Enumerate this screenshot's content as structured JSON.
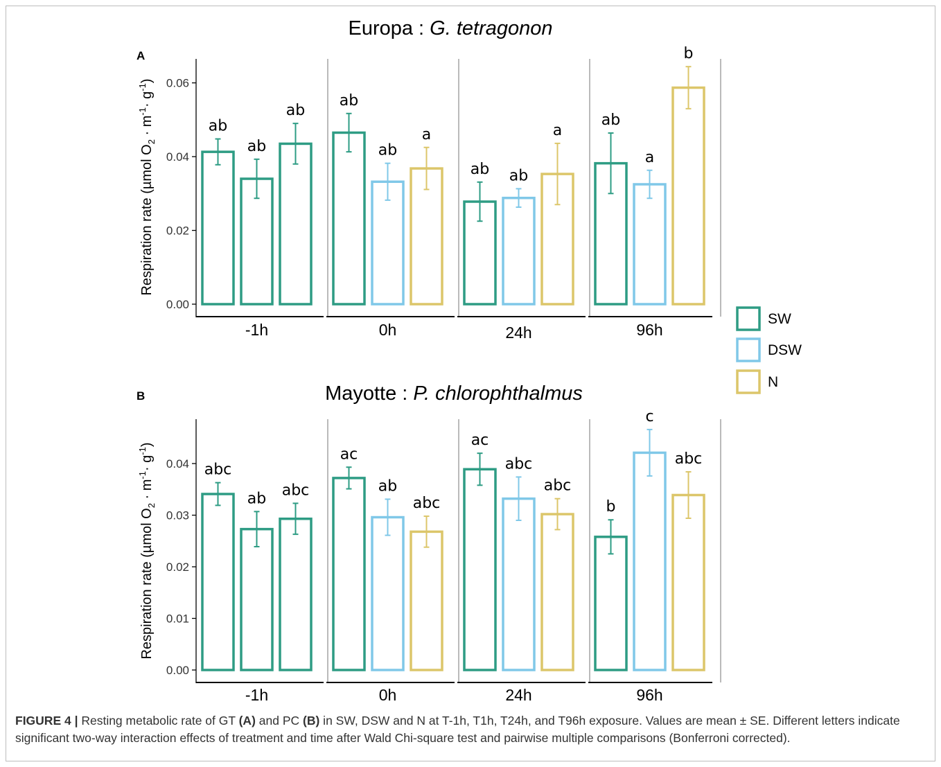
{
  "figure": {
    "caption_label": "FIGURE 4 |",
    "caption_text_1": " Resting metabolic rate of GT ",
    "caption_tag_a": "(A)",
    "caption_text_2": " and PC ",
    "caption_tag_b": "(B)",
    "caption_text_3": " in SW, DSW and N at T-1h, T1h, T24h, and T96h exposure. Values are mean ± SE. Different letters indicate significant two-way interaction effects of treatment and time after Wald Chi-square test and pairwise multiple comparisons (Bonferroni corrected)."
  },
  "colors": {
    "SW": "#2e9c84",
    "DSW": "#80c8e8",
    "N": "#dcc66a",
    "axis": "#000000",
    "divider": "#a8a8a8"
  },
  "legend": {
    "entries": [
      {
        "key": "SW",
        "label": "SW"
      },
      {
        "key": "DSW",
        "label": "DSW"
      },
      {
        "key": "N",
        "label": "N"
      }
    ]
  },
  "chart_data": [
    {
      "type": "bar",
      "panel": "A",
      "title_prefix": "Europa : ",
      "title_species": "G. tetragonon",
      "ylabel_main": "Respiration rate (µmol O",
      "ylabel_sub": "2",
      "ylabel_rest": " · m",
      "ylabel_sup1": "-1",
      "ylabel_rest2": "· g",
      "ylabel_sup2": "-1",
      "ylabel_end": ")",
      "ylim": [
        0,
        0.0665
      ],
      "yticks": [
        "0.00",
        "0.02",
        "0.04",
        "0.06"
      ],
      "ytick_values": [
        0,
        0.02,
        0.04,
        0.06
      ],
      "categories": [
        "-1h",
        "0h",
        "24h",
        "96h"
      ],
      "groups": [
        {
          "category": "-1h",
          "bars": [
            {
              "treatment": "SW",
              "value": 0.0413,
              "err": 0.0035,
              "letter": "ab"
            },
            {
              "treatment": "SW",
              "value": 0.034,
              "err": 0.0053,
              "letter": "ab"
            },
            {
              "treatment": "SW",
              "value": 0.0435,
              "err": 0.0055,
              "letter": "ab"
            }
          ]
        },
        {
          "category": "0h",
          "bars": [
            {
              "treatment": "SW",
              "value": 0.0465,
              "err": 0.0052,
              "letter": "ab"
            },
            {
              "treatment": "DSW",
              "value": 0.0332,
              "err": 0.005,
              "letter": "ab"
            },
            {
              "treatment": "N",
              "value": 0.0368,
              "err": 0.0057,
              "letter": "a"
            }
          ]
        },
        {
          "category": "24h",
          "bars": [
            {
              "treatment": "SW",
              "value": 0.0278,
              "err": 0.0053,
              "letter": "ab"
            },
            {
              "treatment": "DSW",
              "value": 0.0288,
              "err": 0.0025,
              "letter": "ab"
            },
            {
              "treatment": "N",
              "value": 0.0353,
              "err": 0.0083,
              "letter": "a"
            }
          ]
        },
        {
          "category": "96h",
          "bars": [
            {
              "treatment": "SW",
              "value": 0.0382,
              "err": 0.0082,
              "letter": "ab"
            },
            {
              "treatment": "DSW",
              "value": 0.0325,
              "err": 0.0038,
              "letter": "a"
            },
            {
              "treatment": "N",
              "value": 0.0587,
              "err": 0.0057,
              "letter": "b"
            }
          ]
        }
      ]
    },
    {
      "type": "bar",
      "panel": "B",
      "title_prefix": "Mayotte : ",
      "title_species": "P. chlorophthalmus",
      "ylabel_main": "Respiration rate (µmol O",
      "ylabel_sub": "2",
      "ylabel_rest": " · m",
      "ylabel_sup1": "-1",
      "ylabel_rest2": "· g",
      "ylabel_sup2": "-1",
      "ylabel_end": ")",
      "ylim": [
        0,
        0.0486
      ],
      "yticks": [
        "0.00",
        "0.01",
        "0.02",
        "0.03",
        "0.04"
      ],
      "ytick_values": [
        0,
        0.01,
        0.02,
        0.03,
        0.04
      ],
      "categories": [
        "-1h",
        "0h",
        "24h",
        "96h"
      ],
      "groups": [
        {
          "category": "-1h",
          "bars": [
            {
              "treatment": "SW",
              "value": 0.0341,
              "err": 0.0022,
              "letter": "abc"
            },
            {
              "treatment": "SW",
              "value": 0.0273,
              "err": 0.0034,
              "letter": "ab"
            },
            {
              "treatment": "SW",
              "value": 0.0293,
              "err": 0.003,
              "letter": "abc"
            }
          ]
        },
        {
          "category": "0h",
          "bars": [
            {
              "treatment": "SW",
              "value": 0.0372,
              "err": 0.0021,
              "letter": "ac"
            },
            {
              "treatment": "DSW",
              "value": 0.0296,
              "err": 0.0035,
              "letter": "ab"
            },
            {
              "treatment": "N",
              "value": 0.0268,
              "err": 0.003,
              "letter": "abc"
            }
          ]
        },
        {
          "category": "24h",
          "bars": [
            {
              "treatment": "SW",
              "value": 0.0389,
              "err": 0.0031,
              "letter": "ac"
            },
            {
              "treatment": "DSW",
              "value": 0.0332,
              "err": 0.0042,
              "letter": "abc"
            },
            {
              "treatment": "N",
              "value": 0.0302,
              "err": 0.003,
              "letter": "abc"
            }
          ]
        },
        {
          "category": "96h",
          "bars": [
            {
              "treatment": "SW",
              "value": 0.0258,
              "err": 0.0033,
              "letter": "b"
            },
            {
              "treatment": "DSW",
              "value": 0.0421,
              "err": 0.0045,
              "letter": "c"
            },
            {
              "treatment": "N",
              "value": 0.0339,
              "err": 0.0045,
              "letter": "abc"
            }
          ]
        }
      ]
    }
  ]
}
